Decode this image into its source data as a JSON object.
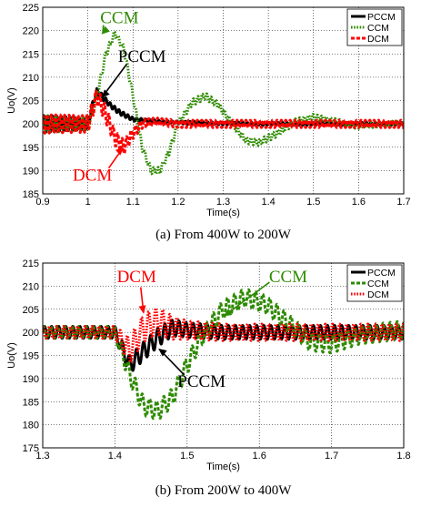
{
  "chart_data": [
    {
      "type": "line",
      "caption": "(a) From 400W to 200W",
      "xlabel": "Time(s)",
      "ylabel": "Uo(V)",
      "xlim": [
        0.9,
        1.7
      ],
      "ylim": [
        185,
        225
      ],
      "xticks": [
        "0.9",
        "1",
        "1.1",
        "1.2",
        "1.3",
        "1.4",
        "1.5",
        "1.6",
        "1.7"
      ],
      "yticks": [
        "185",
        "190",
        "195",
        "200",
        "205",
        "210",
        "215",
        "220",
        "225"
      ],
      "grid": true,
      "legend_position": "top-right",
      "series": [
        {
          "name": "PCCM",
          "color": "#000000",
          "style": "solid",
          "x": [
            0.9,
            1.0,
            1.01,
            1.02,
            1.03,
            1.05,
            1.07,
            1.1,
            1.15,
            1.2,
            1.3,
            1.4,
            1.5,
            1.7
          ],
          "y": [
            200.0,
            200.0,
            204.0,
            207.0,
            206.0,
            204.0,
            202.5,
            201.0,
            200.5,
            200.3,
            200.1,
            200.0,
            200.0,
            200.0
          ],
          "ripple": [
            1.8,
            1.2,
            0.6,
            0.6,
            0.6,
            0.5,
            0.5,
            0.4,
            0.3,
            0.3,
            0.3,
            0.3,
            0.3,
            0.3
          ]
        },
        {
          "name": "CCM",
          "color": "#2e8b00",
          "style": "dotted",
          "x": [
            0.9,
            1.0,
            1.02,
            1.04,
            1.06,
            1.08,
            1.1,
            1.12,
            1.14,
            1.16,
            1.18,
            1.2,
            1.23,
            1.26,
            1.29,
            1.32,
            1.35,
            1.38,
            1.42,
            1.46,
            1.5,
            1.55,
            1.6,
            1.65,
            1.7
          ],
          "y": [
            200.0,
            200.0,
            206.0,
            215.0,
            219.5,
            216.0,
            206.0,
            195.0,
            190.0,
            190.0,
            194.0,
            200.0,
            204.5,
            206.0,
            204.0,
            200.0,
            196.5,
            196.0,
            198.0,
            200.5,
            201.5,
            200.5,
            199.5,
            200.0,
            200.0
          ],
          "ripple": [
            1.8,
            1.5,
            0.8,
            0.7,
            0.7,
            0.7,
            0.7,
            0.7,
            0.7,
            0.7,
            0.7,
            0.7,
            0.7,
            0.7,
            0.7,
            0.7,
            0.7,
            0.7,
            0.7,
            0.6,
            0.6,
            0.6,
            0.6,
            0.6,
            0.6
          ]
        },
        {
          "name": "DCM",
          "color": "#ff0000",
          "style": "dashed",
          "x": [
            0.9,
            1.0,
            1.02,
            1.04,
            1.06,
            1.08,
            1.1,
            1.12,
            1.15,
            1.2,
            1.3,
            1.4,
            1.5,
            1.7
          ],
          "y": [
            200.0,
            200.0,
            206.0,
            202.0,
            197.0,
            195.0,
            198.0,
            200.0,
            200.5,
            200.0,
            200.0,
            200.0,
            200.0,
            200.0
          ],
          "ripple": [
            2.0,
            1.8,
            1.8,
            1.8,
            1.6,
            1.5,
            1.2,
            1.0,
            0.8,
            0.8,
            0.8,
            0.8,
            0.8,
            0.8
          ]
        }
      ],
      "annotations": [
        {
          "text": "CCM",
          "color": "#2e8b00",
          "x": 1.03,
          "y": 219.2,
          "tx": 1.07,
          "ty": 221.6
        },
        {
          "text": "PCCM",
          "color": "#000000",
          "x": 1.03,
          "y": 205.6,
          "tx": 1.12,
          "ty": 213.3
        },
        {
          "text": "DCM",
          "color": "#ff0000",
          "x": 1.08,
          "y": 195.0,
          "tx": 1.01,
          "ty": 187.8
        }
      ]
    },
    {
      "type": "line",
      "caption": "(b) From 200W to 400W",
      "xlabel": "Time(s)",
      "ylabel": "Uo(V)",
      "xlim": [
        1.3,
        1.8
      ],
      "ylim": [
        175,
        215
      ],
      "xticks": [
        "1.3",
        "1.4",
        "1.5",
        "1.6",
        "1.7",
        "1.8"
      ],
      "yticks": [
        "175",
        "180",
        "185",
        "190",
        "195",
        "200",
        "205",
        "210",
        "215"
      ],
      "grid": true,
      "legend_position": "top-right",
      "series": [
        {
          "name": "PCCM",
          "color": "#000000",
          "style": "solid",
          "x": [
            1.3,
            1.4,
            1.42,
            1.44,
            1.46,
            1.48,
            1.5,
            1.55,
            1.6,
            1.7,
            1.8
          ],
          "y": [
            200.0,
            200.0,
            193.0,
            196.0,
            199.0,
            201.0,
            200.5,
            200.0,
            200.0,
            200.0,
            200.0
          ],
          "ripple": [
            1.3,
            1.3,
            2.0,
            2.0,
            2.0,
            1.8,
            1.6,
            1.5,
            1.5,
            1.5,
            1.5
          ]
        },
        {
          "name": "CCM",
          "color": "#2e8b00",
          "style": "dashed",
          "x": [
            1.3,
            1.4,
            1.42,
            1.44,
            1.46,
            1.48,
            1.5,
            1.52,
            1.55,
            1.58,
            1.61,
            1.64,
            1.67,
            1.7,
            1.74,
            1.8
          ],
          "y": [
            200.0,
            200.0,
            191.0,
            184.0,
            183.0,
            186.0,
            193.0,
            199.0,
            205.0,
            207.5,
            206.0,
            202.0,
            198.0,
            197.5,
            199.5,
            200.5
          ],
          "ripple": [
            1.3,
            1.3,
            2.0,
            2.0,
            2.0,
            2.0,
            2.0,
            2.0,
            2.0,
            2.0,
            2.0,
            2.0,
            2.0,
            2.0,
            2.0,
            2.0
          ]
        },
        {
          "name": "DCM",
          "color": "#ff0000",
          "style": "dotted",
          "x": [
            1.3,
            1.4,
            1.42,
            1.44,
            1.46,
            1.48,
            1.5,
            1.55,
            1.6,
            1.7,
            1.8
          ],
          "y": [
            200.0,
            200.0,
            196.0,
            201.0,
            202.5,
            201.0,
            200.5,
            200.0,
            200.0,
            200.0,
            200.0
          ],
          "ripple": [
            1.3,
            1.3,
            3.0,
            3.0,
            3.0,
            2.5,
            2.0,
            1.8,
            1.8,
            1.8,
            1.8
          ]
        }
      ],
      "annotations": [
        {
          "text": "DCM",
          "color": "#ff0000",
          "x": 1.44,
          "y": 204.0,
          "tx": 1.43,
          "ty": 210.9
        },
        {
          "text": "CCM",
          "color": "#2e8b00",
          "x": 1.55,
          "y": 203.5,
          "tx": 1.64,
          "ty": 210.9
        },
        {
          "text": "PCCM",
          "color": "#000000",
          "x": 1.46,
          "y": 196.5,
          "tx": 1.52,
          "ty": 188.2
        }
      ]
    }
  ]
}
